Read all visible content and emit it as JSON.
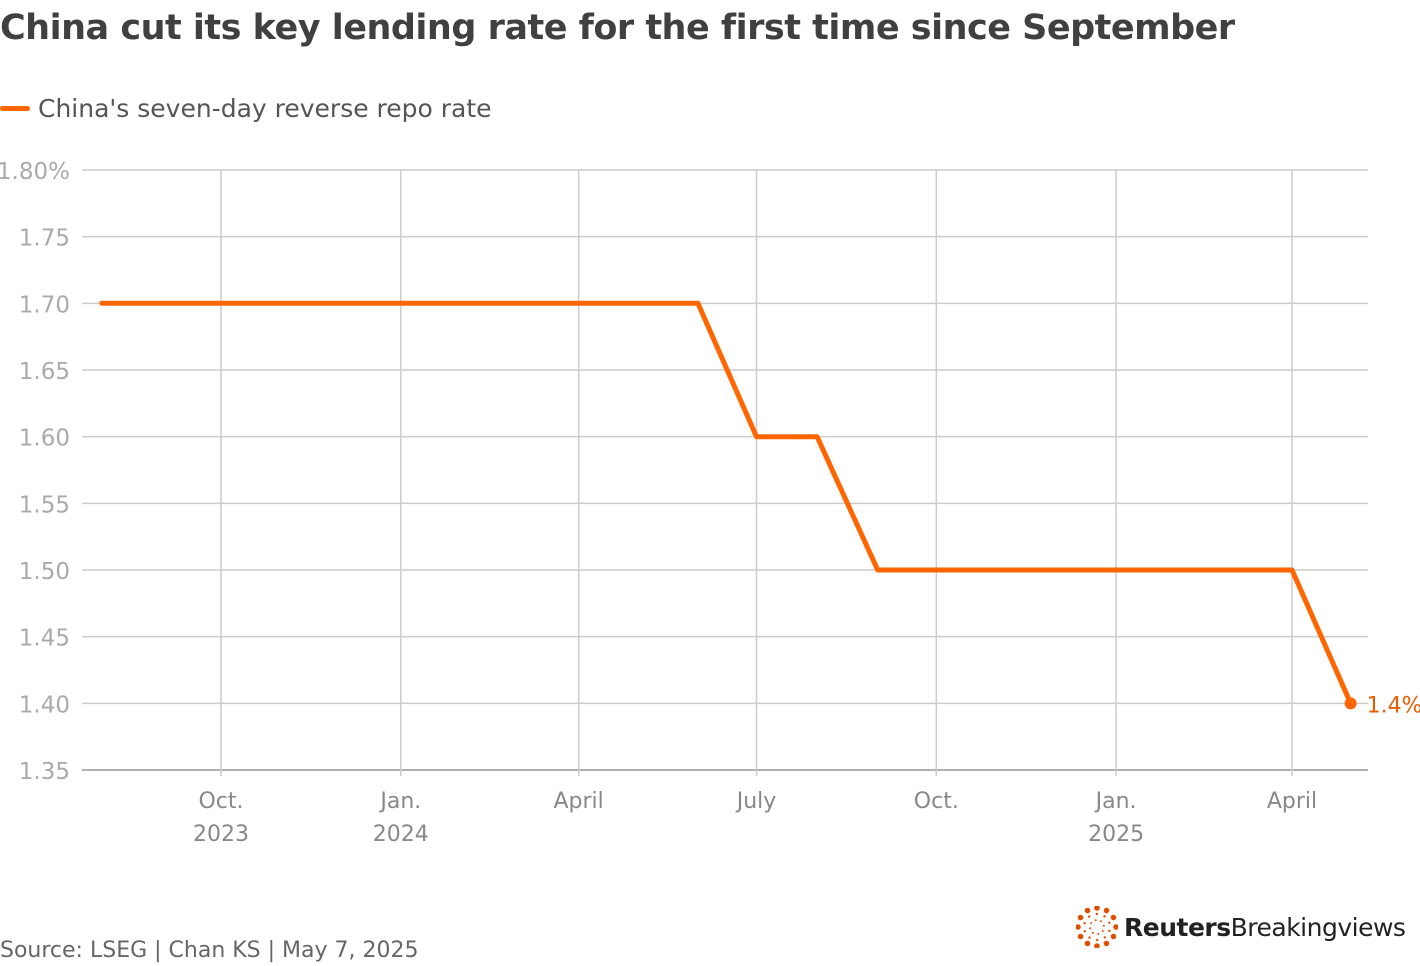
{
  "chart_data": {
    "type": "line",
    "title": "China cut its key lending rate for the first time since September",
    "legend": "China's seven-day reverse repo rate",
    "legend_position": "top-left",
    "series": [
      {
        "name": "China's seven-day reverse repo rate",
        "color": "#ff6600",
        "x": [
          "2023-08-01",
          "2023-09-01",
          "2023-10-01",
          "2023-11-01",
          "2023-12-01",
          "2024-01-01",
          "2024-02-01",
          "2024-03-01",
          "2024-04-01",
          "2024-05-01",
          "2024-06-01",
          "2024-07-01",
          "2024-08-01",
          "2024-09-01",
          "2024-10-01",
          "2024-11-01",
          "2024-12-01",
          "2025-01-01",
          "2025-02-01",
          "2025-03-01",
          "2025-04-01",
          "2025-05-01"
        ],
        "y": [
          1.7,
          1.7,
          1.7,
          1.7,
          1.7,
          1.7,
          1.7,
          1.7,
          1.7,
          1.7,
          1.7,
          1.6,
          1.6,
          1.5,
          1.5,
          1.5,
          1.5,
          1.5,
          1.5,
          1.5,
          1.5,
          1.4
        ]
      }
    ],
    "end_label": "1.4%",
    "ylim": [
      1.35,
      1.8
    ],
    "y_ticks": [
      "1.80%",
      "1.75",
      "1.70",
      "1.65",
      "1.60",
      "1.55",
      "1.50",
      "1.45",
      "1.40",
      "1.35"
    ],
    "y_tick_values": [
      1.8,
      1.75,
      1.7,
      1.65,
      1.6,
      1.55,
      1.5,
      1.45,
      1.4,
      1.35
    ],
    "x_ticks": [
      {
        "date": "2023-10-01",
        "line1": "Oct.",
        "line2": "2023"
      },
      {
        "date": "2024-01-01",
        "line1": "Jan.",
        "line2": "2024"
      },
      {
        "date": "2024-04-01",
        "line1": "April",
        "line2": ""
      },
      {
        "date": "2024-07-01",
        "line1": "July",
        "line2": ""
      },
      {
        "date": "2024-10-01",
        "line1": "Oct.",
        "line2": ""
      },
      {
        "date": "2025-01-01",
        "line1": "Jan.",
        "line2": "2025"
      },
      {
        "date": "2025-04-01",
        "line1": "April",
        "line2": ""
      }
    ],
    "grid": true,
    "xlabel": "",
    "ylabel": ""
  },
  "footer": {
    "source": "Source: LSEG | Chan KS | May 7, 2025",
    "brand_bold": "Reuters",
    "brand_light": "Breakingviews"
  }
}
